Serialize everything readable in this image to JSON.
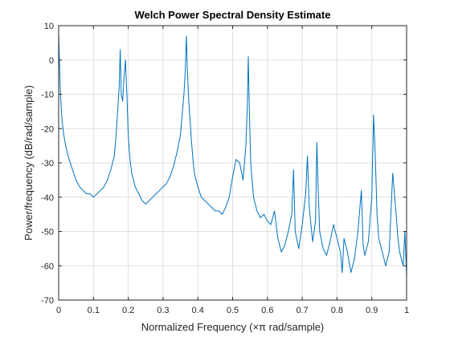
{
  "chart_data": {
    "type": "line",
    "title": "Welch Power Spectral Density Estimate",
    "xlabel": "Normalized Frequency  (×π rad/sample)",
    "ylabel": "Power/frequency (dB/rad/sample)",
    "xlim": [
      0,
      1
    ],
    "ylim": [
      -70,
      10
    ],
    "xticks": [
      0,
      0.1,
      0.2,
      0.3,
      0.4,
      0.5,
      0.6,
      0.7,
      0.8,
      0.9,
      1
    ],
    "xtick_labels": [
      "0",
      "0.1",
      "0.2",
      "0.3",
      "0.4",
      "0.5",
      "0.6",
      "0.7",
      "0.8",
      "0.9",
      "1"
    ],
    "yticks": [
      -70,
      -60,
      -50,
      -40,
      -30,
      -20,
      -10,
      0,
      10
    ],
    "ytick_labels": [
      "-70",
      "-60",
      "-50",
      "-40",
      "-30",
      "-20",
      "-10",
      "0",
      "10"
    ],
    "grid": true,
    "series": [
      {
        "color": "#0072BD",
        "x": [
          0,
          0.002,
          0.005,
          0.01,
          0.015,
          0.02,
          0.025,
          0.03,
          0.04,
          0.05,
          0.06,
          0.07,
          0.08,
          0.09,
          0.1,
          0.11,
          0.12,
          0.13,
          0.14,
          0.15,
          0.16,
          0.165,
          0.17,
          0.174,
          0.177,
          0.18,
          0.184,
          0.188,
          0.192,
          0.196,
          0.2,
          0.205,
          0.21,
          0.22,
          0.23,
          0.24,
          0.25,
          0.26,
          0.27,
          0.28,
          0.29,
          0.3,
          0.31,
          0.32,
          0.33,
          0.34,
          0.35,
          0.355,
          0.36,
          0.364,
          0.367,
          0.37,
          0.374,
          0.378,
          0.382,
          0.386,
          0.39,
          0.4,
          0.41,
          0.42,
          0.43,
          0.44,
          0.45,
          0.46,
          0.47,
          0.48,
          0.49,
          0.5,
          0.51,
          0.52,
          0.53,
          0.538,
          0.542,
          0.545,
          0.548,
          0.552,
          0.56,
          0.57,
          0.58,
          0.59,
          0.6,
          0.61,
          0.62,
          0.63,
          0.64,
          0.65,
          0.66,
          0.67,
          0.675,
          0.68,
          0.69,
          0.7,
          0.71,
          0.715,
          0.72,
          0.73,
          0.738,
          0.742,
          0.746,
          0.75,
          0.76,
          0.77,
          0.78,
          0.79,
          0.8,
          0.81,
          0.815,
          0.82,
          0.83,
          0.84,
          0.85,
          0.86,
          0.87,
          0.875,
          0.88,
          0.89,
          0.9,
          0.905,
          0.91,
          0.915,
          0.92,
          0.93,
          0.94,
          0.95,
          0.96,
          0.97,
          0.975,
          0.98,
          0.99,
          0.995,
          1
        ],
        "y": [
          8,
          0,
          -10,
          -18,
          -22,
          -25,
          -27,
          -29,
          -32,
          -35,
          -37,
          -38,
          -39,
          -39,
          -40,
          -39,
          -38,
          -37,
          -35,
          -32,
          -28,
          -22,
          -14,
          -8,
          3,
          -10,
          -12,
          -5,
          0,
          -10,
          -22,
          -29,
          -33,
          -37,
          -39,
          -41,
          -42,
          -41,
          -40,
          -39,
          -38,
          -37,
          -36,
          -34,
          -31,
          -27,
          -22,
          -16,
          -10,
          -3,
          7,
          -3,
          -12,
          -18,
          -24,
          -29,
          -33,
          -37,
          -40,
          -41,
          -42,
          -43,
          -44,
          -44,
          -45,
          -43,
          -40,
          -34,
          -29,
          -30,
          -35,
          -25,
          -14,
          1,
          -15,
          -30,
          -40,
          -44,
          -46,
          -45,
          -47,
          -48,
          -44,
          -52,
          -56,
          -54,
          -50,
          -45,
          -32,
          -50,
          -55,
          -48,
          -39,
          -28,
          -43,
          -53,
          -47,
          -24,
          -38,
          -50,
          -55,
          -57,
          -53,
          -48,
          -52,
          -56,
          -62,
          -52,
          -56,
          -62,
          -58,
          -50,
          -38,
          -54,
          -57,
          -53,
          -40,
          -16,
          -28,
          -45,
          -52,
          -56,
          -60,
          -56,
          -33,
          -45,
          -52,
          -56,
          -60,
          -50,
          -63
        ]
      }
    ]
  }
}
